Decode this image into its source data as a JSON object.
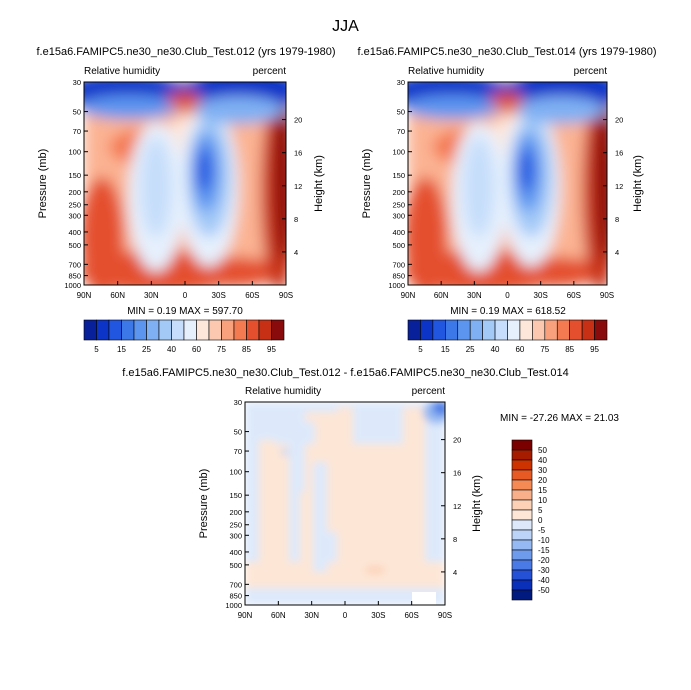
{
  "page_title": "JJA",
  "chart_data": [
    {
      "type": "heatmap",
      "id": "p1",
      "title": "f.e15a6.FAMIPC5.ne30_ne30.Club_Test.012 (yrs 1979-1980)",
      "left_string": "Relative humidity",
      "right_string": "percent",
      "ylabel": "Pressure (mb)",
      "ylabel_right": "Height (km)",
      "xticks": [
        "90N",
        "60N",
        "30N",
        "0",
        "30S",
        "60S",
        "90S"
      ],
      "yticks": [
        "30",
        "50",
        "70",
        "100",
        "150",
        "200",
        "250",
        "300",
        "400",
        "500",
        "700",
        "850",
        "1000"
      ],
      "yticks_right": [
        "20",
        "16",
        "12",
        "8",
        "4"
      ],
      "ylim": [
        30,
        1000
      ],
      "stats": "MIN =   0.19  MAX = 597.70",
      "colorbar_labels": [
        "5",
        "15",
        "25",
        "40",
        "60",
        "75",
        "85",
        "95"
      ],
      "colorbar_levels": [
        5,
        10,
        15,
        20,
        25,
        30,
        40,
        50,
        60,
        70,
        75,
        80,
        85,
        90,
        95
      ]
    },
    {
      "type": "heatmap",
      "id": "p2",
      "title": "f.e15a6.FAMIPC5.ne30_ne30.Club_Test.014 (yrs 1979-1980)",
      "left_string": "Relative humidity",
      "right_string": "percent",
      "ylabel": "Pressure (mb)",
      "ylabel_right": "Height (km)",
      "xticks": [
        "90N",
        "60N",
        "30N",
        "0",
        "30S",
        "60S",
        "90S"
      ],
      "yticks": [
        "30",
        "50",
        "70",
        "100",
        "150",
        "200",
        "250",
        "300",
        "400",
        "500",
        "700",
        "850",
        "1000"
      ],
      "yticks_right": [
        "20",
        "16",
        "12",
        "8",
        "4"
      ],
      "ylim": [
        30,
        1000
      ],
      "stats": "MIN =   0.19  MAX = 618.52",
      "colorbar_labels": [
        "5",
        "15",
        "25",
        "40",
        "60",
        "75",
        "85",
        "95"
      ],
      "colorbar_levels": [
        5,
        10,
        15,
        20,
        25,
        30,
        40,
        50,
        60,
        70,
        75,
        80,
        85,
        90,
        95
      ]
    },
    {
      "type": "heatmap",
      "id": "diff",
      "title": "f.e15a6.FAMIPC5.ne30_ne30.Club_Test.012 - f.e15a6.FAMIPC5.ne30_ne30.Club_Test.014",
      "left_string": "Relative humidity",
      "right_string": "percent",
      "ylabel": "Pressure (mb)",
      "ylabel_right": "Height (km)",
      "xticks": [
        "90N",
        "60N",
        "30N",
        "0",
        "30S",
        "60S",
        "90S"
      ],
      "yticks": [
        "30",
        "50",
        "70",
        "100",
        "150",
        "200",
        "250",
        "300",
        "400",
        "500",
        "700",
        "850",
        "1000"
      ],
      "yticks_right": [
        "20",
        "16",
        "12",
        "8",
        "4"
      ],
      "ylim": [
        30,
        1000
      ],
      "stats": "MIN = -27.26  MAX =  21.03",
      "colorbar_labels": [
        "50",
        "40",
        "30",
        "20",
        "15",
        "10",
        "5",
        "0",
        "-5",
        "-10",
        "-15",
        "-20",
        "-30",
        "-40",
        "-50"
      ]
    }
  ],
  "colors": {
    "rh_palette": [
      "#08219a",
      "#0c35c8",
      "#2156e0",
      "#3d78e8",
      "#5b95ef",
      "#7fb0f3",
      "#a3c9f7",
      "#c6defb",
      "#e6f0fd",
      "#fde6da",
      "#fcc9b0",
      "#f9a07c",
      "#f47a52",
      "#e4502e",
      "#c83016",
      "#8a0b0b"
    ],
    "diff_palette": [
      "#7a0000",
      "#a61c00",
      "#cc3300",
      "#e85a24",
      "#f58a55",
      "#f9b08a",
      "#fcd1b6",
      "#fde6d6",
      "#dde9fb",
      "#bcd4f7",
      "#95b9f2",
      "#6f9bec",
      "#4a7ae5",
      "#2451d6",
      "#0a2fb8",
      "#001a80"
    ]
  }
}
